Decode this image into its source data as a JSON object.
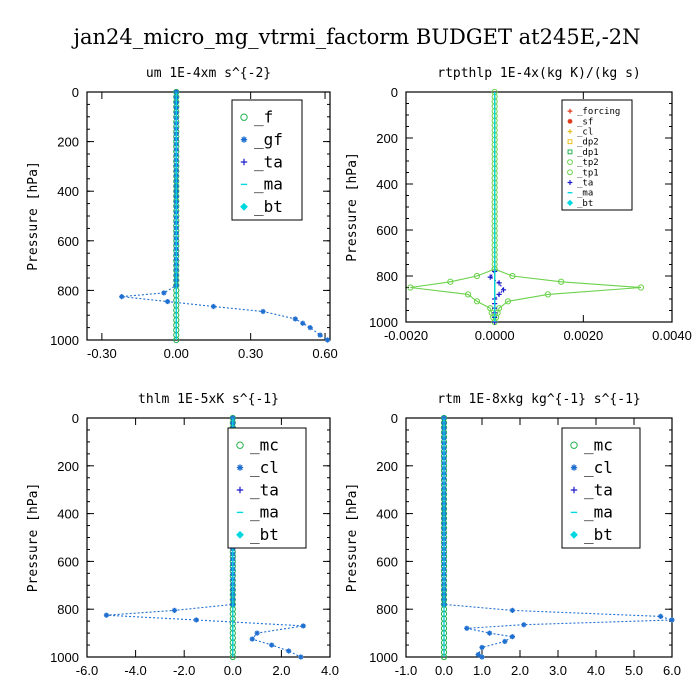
{
  "title": "jan24_micro_mg_vtrmi_factorm  BUDGET at245E,-2N",
  "colors": {
    "green": "#22b14c",
    "blue": "#1f6fd0",
    "red": "#e03a1a",
    "cyan": "#00d8e0",
    "navy": "#1a1ac8",
    "yellow": "#e8c020",
    "lightgreen": "#6ad24a"
  },
  "chart_data": [
    {
      "type": "line",
      "title": "um   1E-4xm s^{-2}",
      "ylabel": "Pressure [hPa]",
      "xlim": [
        -0.36,
        0.62
      ],
      "ylim": [
        1000,
        0
      ],
      "xticks": [
        -0.3,
        0.0,
        0.3,
        0.6
      ],
      "xtick_labels": [
        "-0.30",
        "0.00",
        "0.30",
        "0.60"
      ],
      "yticks": [
        0,
        200,
        400,
        600,
        800,
        1000
      ],
      "ytick_labels": [
        "0",
        "200",
        "400",
        "600",
        "800",
        "1000"
      ],
      "legend_position": "top-right",
      "legend_font": 16,
      "series": [
        {
          "name": "_f",
          "color": "#22b14c",
          "dash": "",
          "marker": "circle",
          "points": [
            [
              0,
              0
            ],
            [
              0,
              200
            ],
            [
              0,
              400
            ],
            [
              0,
              600
            ],
            [
              0,
              800
            ],
            [
              0,
              1000
            ]
          ]
        },
        {
          "name": "_gf",
          "color": "#1f6fd0",
          "dash": "2,2",
          "marker": "star",
          "points": [
            [
              0,
              0
            ],
            [
              0,
              780
            ],
            [
              -0.05,
              810
            ],
            [
              -0.22,
              825
            ],
            [
              0.15,
              865
            ],
            [
              0.35,
              885
            ],
            [
              0.48,
              915
            ],
            [
              0.54,
              950
            ],
            [
              0.58,
              980
            ],
            [
              0.61,
              1000
            ]
          ]
        },
        {
          "name": "_ta",
          "color": "#1a1ac8",
          "dash": "2,2",
          "marker": "plus",
          "points": [
            [
              0,
              0
            ],
            [
              0,
              1000
            ]
          ]
        },
        {
          "name": "_ma",
          "color": "#00d8e0",
          "dash": "",
          "marker": "dash",
          "points": [
            [
              0,
              0
            ],
            [
              0,
              1000
            ]
          ]
        },
        {
          "name": "_bt",
          "color": "#00d8e0",
          "dash": "",
          "marker": "diamond",
          "points": [
            [
              0,
              0
            ],
            [
              0,
              1000
            ]
          ]
        }
      ]
    },
    {
      "type": "line",
      "title": "rtpthlp   1E-4x(kg K)/(kg s)",
      "ylabel": "Pressure [hPa]",
      "xlim": [
        -0.002,
        0.004
      ],
      "ylim": [
        1000,
        0
      ],
      "xticks": [
        -0.002,
        0,
        0.002,
        0.004
      ],
      "xtick_labels": [
        "-0.0020",
        "0.0000",
        "0.0020",
        "0.0040"
      ],
      "yticks": [
        0,
        200,
        400,
        600,
        800,
        1000
      ],
      "ytick_labels": [
        "0",
        "200",
        "400",
        "600",
        "800",
        "1000"
      ],
      "legend_position": "top-right",
      "legend_font": 9,
      "series": [
        {
          "name": "_forcing",
          "color": "#e03a1a",
          "dash": "",
          "marker": "plus",
          "points": [
            [
              0,
              0
            ],
            [
              0,
              1000
            ]
          ]
        },
        {
          "name": "_sf",
          "color": "#e03a1a",
          "dash": "",
          "marker": "star",
          "points": [
            [
              0,
              0
            ],
            [
              0,
              1000
            ]
          ]
        },
        {
          "name": "_cl",
          "color": "#e8c020",
          "dash": "",
          "marker": "plus",
          "points": [
            [
              0,
              0
            ],
            [
              0,
              1000
            ]
          ]
        },
        {
          "name": "_dp2",
          "color": "#e8c020",
          "dash": "",
          "marker": "square",
          "points": [
            [
              0,
              0
            ],
            [
              0,
              1000
            ]
          ]
        },
        {
          "name": "_dp1",
          "color": "#22b14c",
          "dash": "",
          "marker": "square",
          "points": [
            [
              0,
              0
            ],
            [
              0,
              1000
            ]
          ]
        },
        {
          "name": "_tp2",
          "color": "#6ad24a",
          "dash": "",
          "marker": "circle",
          "points": [
            [
              0,
              0
            ],
            [
              0,
              770
            ],
            [
              -0.0004,
              800
            ],
            [
              -0.001,
              825
            ],
            [
              -0.0019,
              850
            ],
            [
              -0.0006,
              880
            ],
            [
              -0.0004,
              910
            ],
            [
              -0.0001,
              940
            ],
            [
              0,
              1000
            ]
          ]
        },
        {
          "name": "_tp1",
          "color": "#6ad24a",
          "dash": "",
          "marker": "circle",
          "points": [
            [
              0,
              770
            ],
            [
              0.0004,
              800
            ],
            [
              0.0015,
              825
            ],
            [
              0.0033,
              850
            ],
            [
              0.0012,
              880
            ],
            [
              0.0003,
              910
            ],
            [
              0.0001,
              940
            ],
            [
              0,
              1000
            ]
          ]
        },
        {
          "name": "_ta",
          "color": "#1a1ac8",
          "dash": "2,2",
          "marker": "plus",
          "points": [
            [
              0,
              780
            ],
            [
              -0.0001,
              805
            ],
            [
              0.0001,
              830
            ],
            [
              0.0002,
              860
            ],
            [
              0,
              900
            ],
            [
              0,
              1000
            ]
          ]
        },
        {
          "name": "_ma",
          "color": "#00d8e0",
          "dash": "",
          "marker": "dash",
          "points": [
            [
              0,
              0
            ],
            [
              0,
              1000
            ]
          ]
        },
        {
          "name": "_bt",
          "color": "#00d8e0",
          "dash": "",
          "marker": "diamond",
          "points": [
            [
              0,
              0
            ],
            [
              0,
              1000
            ]
          ]
        }
      ]
    },
    {
      "type": "line",
      "title": "thlm   1E-5xK s^{-1}",
      "ylabel": "Pressure [hPa]",
      "xlim": [
        -6.0,
        4.0
      ],
      "ylim": [
        1000,
        0
      ],
      "xticks": [
        -6,
        -4,
        -2,
        0,
        2,
        4
      ],
      "xtick_labels": [
        "-6.0",
        "-4.0",
        "-2.0",
        "0.0",
        "2.0",
        "4.0"
      ],
      "yticks": [
        0,
        200,
        400,
        600,
        800,
        1000
      ],
      "ytick_labels": [
        "0",
        "200",
        "400",
        "600",
        "800",
        "1000"
      ],
      "legend_position": "top-right",
      "legend_font": 16,
      "series": [
        {
          "name": "_mc",
          "color": "#22b14c",
          "dash": "",
          "marker": "circle",
          "points": [
            [
              0,
              0
            ],
            [
              0,
              200
            ],
            [
              0,
              400
            ],
            [
              0,
              600
            ],
            [
              0,
              800
            ],
            [
              0,
              1000
            ]
          ]
        },
        {
          "name": "_cl",
          "color": "#1f6fd0",
          "dash": "2,2",
          "marker": "star",
          "points": [
            [
              0,
              0
            ],
            [
              0,
              780
            ],
            [
              -2.4,
              805
            ],
            [
              -5.2,
              825
            ],
            [
              -1.5,
              845
            ],
            [
              2.9,
              870
            ],
            [
              1.0,
              900
            ],
            [
              0.8,
              925
            ],
            [
              1.6,
              950
            ],
            [
              2.3,
              975
            ],
            [
              2.8,
              1000
            ]
          ]
        },
        {
          "name": "_ta",
          "color": "#1a1ac8",
          "dash": "2,2",
          "marker": "plus",
          "points": [
            [
              0,
              0
            ],
            [
              0,
              1000
            ]
          ]
        },
        {
          "name": "_ma",
          "color": "#00d8e0",
          "dash": "",
          "marker": "dash",
          "points": [
            [
              0,
              0
            ],
            [
              0,
              1000
            ]
          ]
        },
        {
          "name": "_bt",
          "color": "#00d8e0",
          "dash": "",
          "marker": "diamond",
          "points": [
            [
              0,
              0
            ],
            [
              0,
              1000
            ]
          ]
        }
      ]
    },
    {
      "type": "line",
      "title": "rtm   1E-8xkg kg^{-1} s^{-1}",
      "ylabel": "Pressure [hPa]",
      "xlim": [
        -1.0,
        6.0
      ],
      "ylim": [
        1000,
        0
      ],
      "xticks": [
        -1,
        0,
        1,
        2,
        3,
        4,
        5,
        6
      ],
      "xtick_labels": [
        "-1.0",
        "0.0",
        "1.0",
        "2.0",
        "3.0",
        "4.0",
        "5.0",
        "6.0"
      ],
      "yticks": [
        0,
        200,
        400,
        600,
        800,
        1000
      ],
      "ytick_labels": [
        "0",
        "200",
        "400",
        "600",
        "800",
        "1000"
      ],
      "legend_position": "top-right",
      "legend_font": 16,
      "series": [
        {
          "name": "_mc",
          "color": "#22b14c",
          "dash": "",
          "marker": "circle",
          "points": [
            [
              0,
              0
            ],
            [
              0,
              200
            ],
            [
              0,
              400
            ],
            [
              0,
              600
            ],
            [
              0,
              800
            ],
            [
              0,
              1000
            ]
          ]
        },
        {
          "name": "_cl",
          "color": "#1f6fd0",
          "dash": "2,2",
          "marker": "star",
          "points": [
            [
              0,
              0
            ],
            [
              0,
              780
            ],
            [
              1.8,
              805
            ],
            [
              5.7,
              830
            ],
            [
              6.0,
              845
            ],
            [
              2.1,
              865
            ],
            [
              0.6,
              880
            ],
            [
              1.2,
              900
            ],
            [
              1.8,
              915
            ],
            [
              1.6,
              935
            ],
            [
              1.0,
              960
            ],
            [
              0.9,
              990
            ],
            [
              1.0,
              1000
            ]
          ]
        },
        {
          "name": "_ta",
          "color": "#1a1ac8",
          "dash": "2,2",
          "marker": "plus",
          "points": [
            [
              0,
              0
            ],
            [
              0,
              1000
            ]
          ]
        },
        {
          "name": "_ma",
          "color": "#00d8e0",
          "dash": "",
          "marker": "dash",
          "points": [
            [
              0,
              0
            ],
            [
              0,
              1000
            ]
          ]
        },
        {
          "name": "_bt",
          "color": "#00d8e0",
          "dash": "",
          "marker": "diamond",
          "points": [
            [
              0,
              0
            ],
            [
              0,
              1000
            ]
          ]
        }
      ]
    }
  ]
}
